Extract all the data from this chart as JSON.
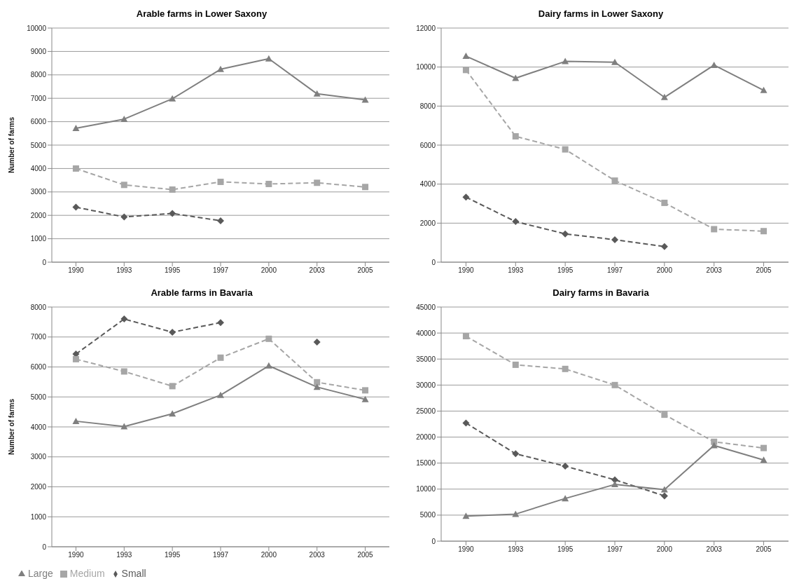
{
  "chart_data": [
    {
      "type": "line",
      "title": "Arable farms in Lower Saxony",
      "ylabel": "Number of farms",
      "categories": [
        "1990",
        "1993",
        "1995",
        "1997",
        "2000",
        "2003",
        "2005"
      ],
      "ylim": [
        0,
        10000
      ],
      "yticks": [
        0,
        1000,
        2000,
        3000,
        4000,
        5000,
        6000,
        7000,
        8000,
        9000,
        10000
      ],
      "grid": "y",
      "legend": false,
      "series": [
        {
          "color": "#595959",
          "marker": "diamond",
          "line_style": "dashed",
          "values": [
            2350,
            1930,
            2080,
            1770,
            null,
            null,
            null
          ]
        },
        {
          "color": "#a6a6a6",
          "marker": "square",
          "line_style": "dashed",
          "values": [
            4000,
            3300,
            3100,
            3430,
            3340,
            3390,
            3210
          ]
        },
        {
          "color": "#7f7f7f",
          "marker": "triangle",
          "line_style": "solid",
          "values": [
            5720,
            6110,
            6980,
            8240,
            8690,
            7190,
            6930
          ]
        }
      ]
    },
    {
      "type": "line",
      "title": "Dairy farms in Lower Saxony",
      "categories": [
        "1990",
        "1993",
        "1995",
        "1997",
        "2000",
        "2003",
        "2005"
      ],
      "ylim": [
        0,
        12000
      ],
      "yticks": [
        0,
        2000,
        4000,
        6000,
        8000,
        10000,
        12000
      ],
      "grid": "y",
      "legend": false,
      "series": [
        {
          "color": "#595959",
          "marker": "diamond",
          "line_style": "dashed",
          "values": [
            3330,
            2080,
            1450,
            1150,
            800,
            null,
            null
          ]
        },
        {
          "color": "#a6a6a6",
          "marker": "square",
          "line_style": "dashed",
          "values": [
            9850,
            6450,
            5780,
            4180,
            3040,
            1690,
            1590
          ]
        },
        {
          "color": "#7f7f7f",
          "marker": "triangle",
          "line_style": "solid",
          "values": [
            10560,
            9430,
            10290,
            10250,
            8450,
            10100,
            8810
          ]
        }
      ]
    },
    {
      "type": "line",
      "title": "Arable farms in Bavaria",
      "ylabel": "Number of farms",
      "categories": [
        "1990",
        "1993",
        "1995",
        "1997",
        "2000",
        "2003",
        "2005"
      ],
      "ylim": [
        0,
        8000
      ],
      "yticks": [
        0,
        1000,
        2000,
        3000,
        4000,
        5000,
        6000,
        7000,
        8000
      ],
      "grid": "y",
      "legend": "bottom left",
      "series": [
        {
          "name": "Small",
          "color": "#595959",
          "marker": "diamond",
          "line_style": "dashed",
          "values": [
            6430,
            7600,
            7160,
            7480,
            null,
            6830,
            null
          ]
        },
        {
          "name": "Medium",
          "color": "#a6a6a6",
          "marker": "square",
          "line_style": "dashed",
          "values": [
            6260,
            5850,
            5360,
            6310,
            6940,
            5490,
            5220
          ]
        },
        {
          "name": "Large",
          "color": "#7f7f7f",
          "marker": "triangle",
          "line_style": "solid",
          "values": [
            4190,
            4010,
            4440,
            5060,
            6040,
            5330,
            4920
          ]
        }
      ]
    },
    {
      "type": "line",
      "title": "Dairy farms in Bavaria",
      "categories": [
        "1990",
        "1993",
        "1995",
        "1997",
        "2000",
        "2003",
        "2005"
      ],
      "ylim": [
        0,
        45000
      ],
      "yticks": [
        0,
        5000,
        10000,
        15000,
        20000,
        25000,
        30000,
        35000,
        40000,
        45000
      ],
      "grid": "y",
      "legend": false,
      "series": [
        {
          "color": "#595959",
          "marker": "diamond",
          "line_style": "dashed",
          "values": [
            22700,
            16800,
            14400,
            11800,
            8700,
            null,
            null
          ]
        },
        {
          "color": "#a6a6a6",
          "marker": "square",
          "line_style": "dashed",
          "values": [
            39400,
            33900,
            33100,
            30000,
            24300,
            19100,
            17900
          ]
        },
        {
          "color": "#7f7f7f",
          "marker": "triangle",
          "line_style": "solid",
          "values": [
            4800,
            5200,
            8200,
            10900,
            9900,
            18400,
            15600
          ]
        }
      ]
    }
  ]
}
